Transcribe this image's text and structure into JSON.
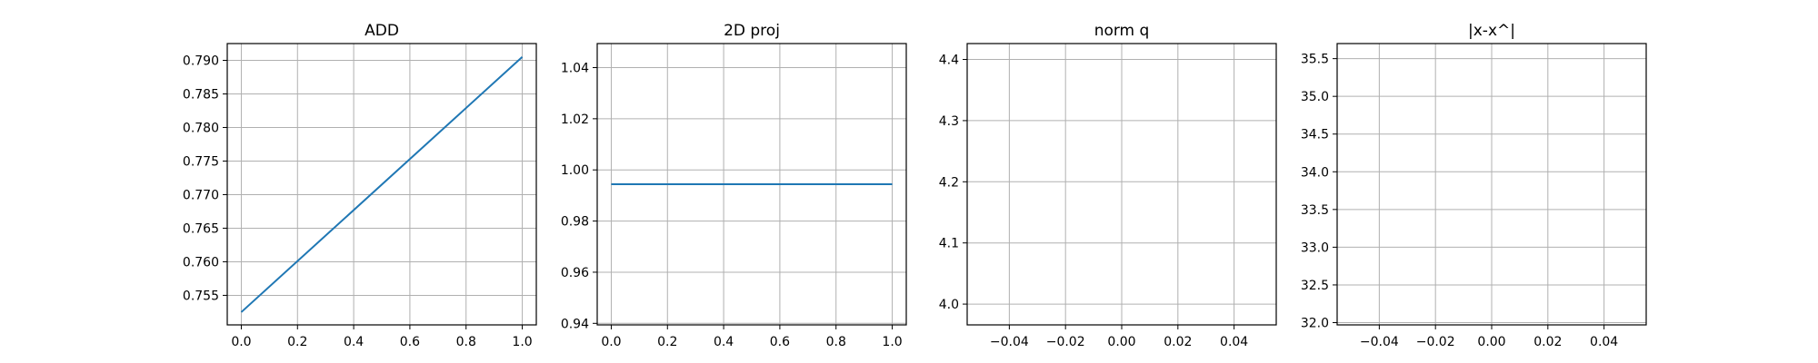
{
  "colors": {
    "line": "#1f77b4",
    "grid": "#b0b0b0",
    "axis": "#000000",
    "background": "#ffffff"
  },
  "chart_data": [
    {
      "type": "line",
      "title": "ADD",
      "xlabel": "",
      "ylabel": "",
      "grid": true,
      "xlim": [
        -0.05,
        1.05
      ],
      "ylim": [
        0.7506,
        0.7925
      ],
      "xticks": [
        0.0,
        0.2,
        0.4,
        0.6,
        0.8,
        1.0
      ],
      "xtick_labels": [
        "0.0",
        "0.2",
        "0.4",
        "0.6",
        "0.8",
        "1.0"
      ],
      "yticks": [
        0.755,
        0.76,
        0.765,
        0.77,
        0.775,
        0.78,
        0.785,
        0.79
      ],
      "ytick_labels": [
        "0.755",
        "0.760",
        "0.765",
        "0.770",
        "0.775",
        "0.780",
        "0.785",
        "0.790"
      ],
      "series": [
        {
          "x": [
            0.0,
            1.0
          ],
          "y": [
            0.7525,
            0.7905
          ]
        }
      ]
    },
    {
      "type": "line",
      "title": "2D proj",
      "xlabel": "",
      "ylabel": "",
      "grid": true,
      "xlim": [
        -0.05,
        1.05
      ],
      "ylim": [
        0.9394,
        1.0494
      ],
      "xticks": [
        0.0,
        0.2,
        0.4,
        0.6,
        0.8,
        1.0
      ],
      "xtick_labels": [
        "0.0",
        "0.2",
        "0.4",
        "0.6",
        "0.8",
        "1.0"
      ],
      "yticks": [
        0.94,
        0.96,
        0.98,
        1.0,
        1.02,
        1.04
      ],
      "ytick_labels": [
        "0.94",
        "0.96",
        "0.98",
        "1.00",
        "1.02",
        "1.04"
      ],
      "series": [
        {
          "x": [
            0.0,
            1.0
          ],
          "y": [
            0.9944,
            0.9944
          ]
        }
      ]
    },
    {
      "type": "line",
      "title": "norm q",
      "xlabel": "",
      "ylabel": "",
      "grid": true,
      "xlim": [
        -0.055,
        0.055
      ],
      "ylim": [
        3.966,
        4.426
      ],
      "xticks": [
        -0.04,
        -0.02,
        0.0,
        0.02,
        0.04
      ],
      "xtick_labels": [
        "−0.04",
        "−0.02",
        "0.00",
        "0.02",
        "0.04"
      ],
      "yticks": [
        4.0,
        4.1,
        4.2,
        4.3,
        4.4
      ],
      "ytick_labels": [
        "4.0",
        "4.1",
        "4.2",
        "4.3",
        "4.4"
      ],
      "series": []
    },
    {
      "type": "line",
      "title": "|x-x^|",
      "xlabel": "",
      "ylabel": "",
      "grid": true,
      "xlim": [
        -0.055,
        0.055
      ],
      "ylim": [
        31.97,
        35.7
      ],
      "xticks": [
        -0.04,
        -0.02,
        0.0,
        0.02,
        0.04
      ],
      "xtick_labels": [
        "−0.04",
        "−0.02",
        "0.00",
        "0.02",
        "0.04"
      ],
      "yticks": [
        32.0,
        32.5,
        33.0,
        33.5,
        34.0,
        34.5,
        35.0,
        35.5
      ],
      "ytick_labels": [
        "32.0",
        "32.5",
        "33.0",
        "33.5",
        "34.0",
        "34.5",
        "35.0",
        "35.5"
      ],
      "series": []
    }
  ]
}
